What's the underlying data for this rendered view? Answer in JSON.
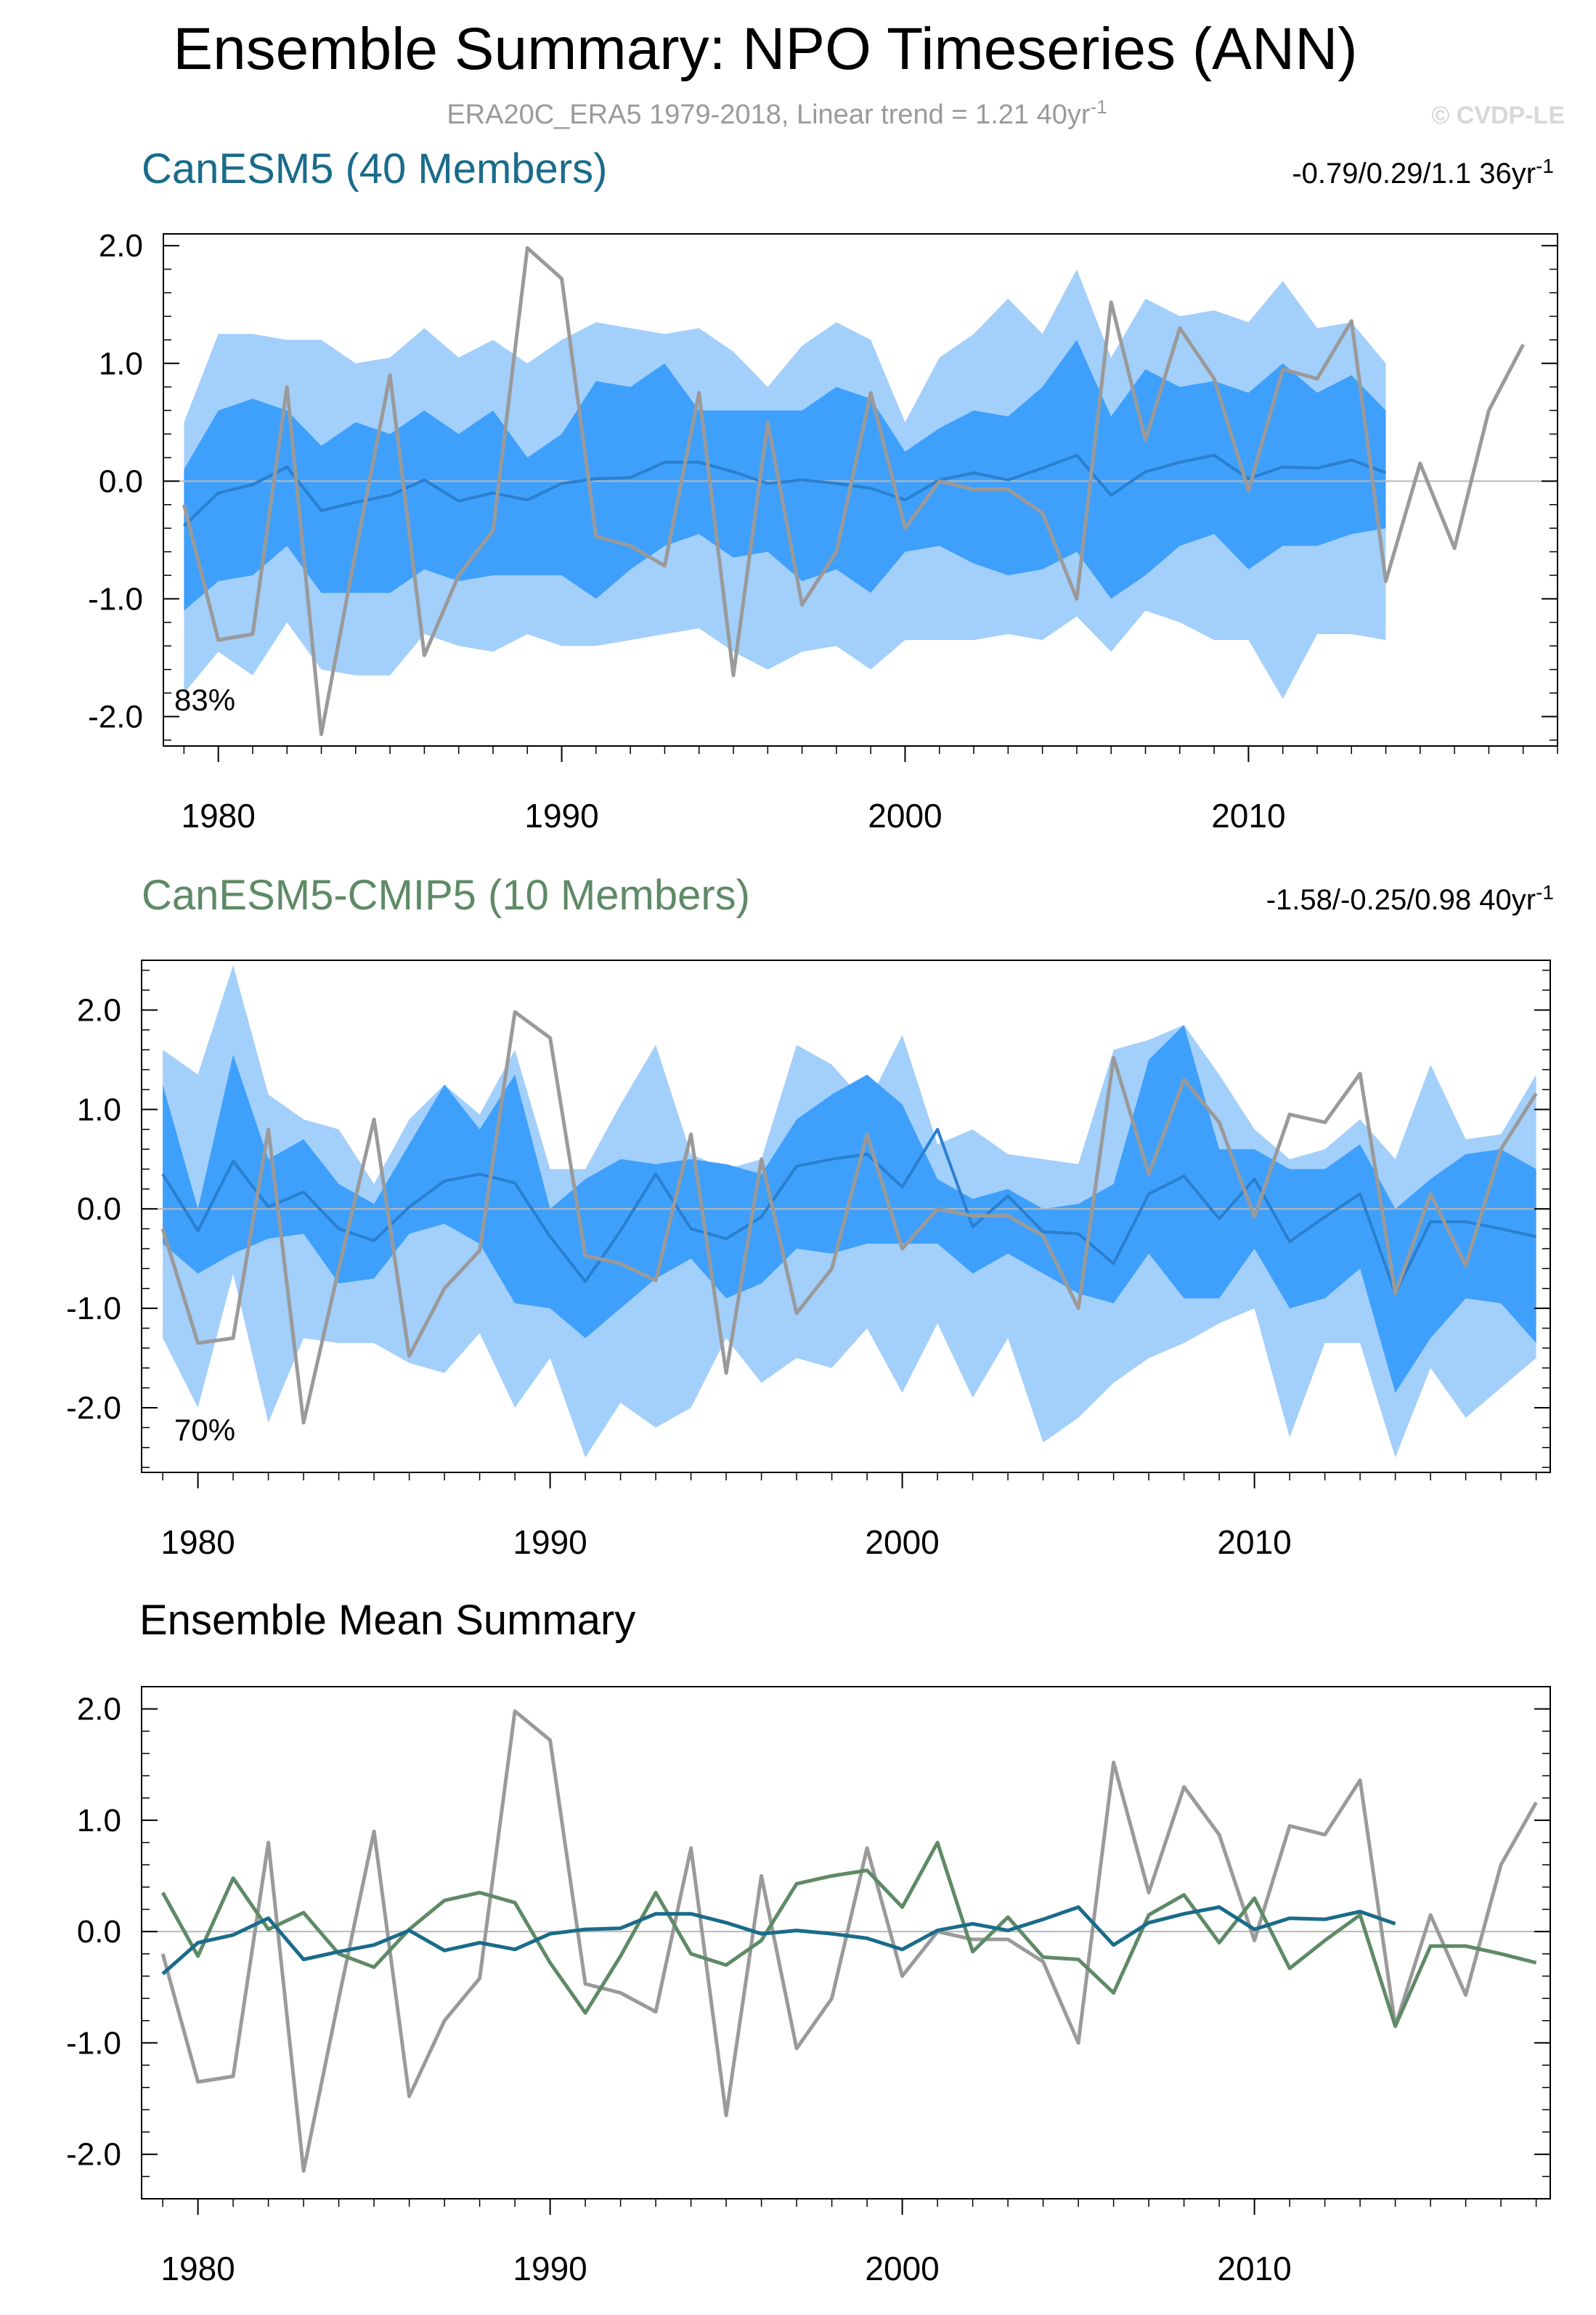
{
  "colors": {
    "obs": "#9a9a9a",
    "canesm5": "#1a6b8a",
    "cmip5": "#5e8a66",
    "spread_outer": "#a3cffb",
    "spread_inner": "#3ea0fb",
    "member_mean": "#2a7fcf",
    "zero_line": "#b8b8b8",
    "axis": "#000000"
  },
  "figure": {
    "title": "Ensemble Summary: NPO Timeseries (ANN)",
    "subtitle": "ERA20C_ERA5 1979-2018, Linear trend = 1.21 40yr",
    "subtitle_sup": "-1",
    "credit": "© CVDP-LE"
  },
  "chart_data": [
    {
      "id": "canesm5",
      "type": "area",
      "title": "CanESM5 (40 Members)",
      "trend_text": "-0.79/0.29/1.1 36yr",
      "trend_sup": "-1",
      "percent_label": "83%",
      "xlim": [
        1978.4,
        2019.0
      ],
      "ylim": [
        -2.25,
        2.1
      ],
      "yticks": [
        -2.0,
        -1.0,
        0.0,
        1.0,
        2.0
      ],
      "ytick_labels": [
        "-2.0",
        "-1.0",
        "0.0",
        "1.0",
        "2.0"
      ],
      "xticks": [
        1980,
        1990,
        2000,
        2010
      ],
      "xtick_labels": [
        "1980",
        "1990",
        "2000",
        "2010"
      ],
      "years": [
        1979,
        1980,
        1981,
        1982,
        1983,
        1984,
        1985,
        1986,
        1987,
        1988,
        1989,
        1990,
        1991,
        1992,
        1993,
        1994,
        1995,
        1996,
        1997,
        1998,
        1999,
        2000,
        2001,
        2002,
        2003,
        2004,
        2005,
        2006,
        2007,
        2008,
        2009,
        2010,
        2011,
        2012,
        2013,
        2014
      ],
      "outer_upper": [
        0.5,
        1.25,
        1.25,
        1.2,
        1.2,
        1.0,
        1.05,
        1.3,
        1.05,
        1.2,
        1.0,
        1.2,
        1.35,
        1.3,
        1.25,
        1.3,
        1.1,
        0.8,
        1.15,
        1.35,
        1.2,
        0.5,
        1.05,
        1.25,
        1.55,
        1.25,
        1.8,
        1.05,
        1.55,
        1.4,
        1.45,
        1.35,
        1.7,
        1.3,
        1.35,
        1.0
      ],
      "inner_upper": [
        0.1,
        0.6,
        0.7,
        0.6,
        0.3,
        0.5,
        0.4,
        0.6,
        0.4,
        0.6,
        0.2,
        0.4,
        0.85,
        0.8,
        1.0,
        0.6,
        0.6,
        0.6,
        0.6,
        0.8,
        0.7,
        0.25,
        0.45,
        0.6,
        0.55,
        0.8,
        1.2,
        0.55,
        0.95,
        0.8,
        0.85,
        0.75,
        1.0,
        0.75,
        0.9,
        0.6
      ],
      "inner_lower": [
        -1.1,
        -0.85,
        -0.8,
        -0.55,
        -0.95,
        -0.95,
        -0.95,
        -0.75,
        -0.85,
        -0.8,
        -0.8,
        -0.8,
        -1.0,
        -0.75,
        -0.55,
        -0.45,
        -0.65,
        -0.6,
        -0.85,
        -0.75,
        -0.95,
        -0.6,
        -0.55,
        -0.7,
        -0.8,
        -0.75,
        -0.6,
        -1.0,
        -0.8,
        -0.55,
        -0.45,
        -0.75,
        -0.55,
        -0.55,
        -0.45,
        -0.4
      ],
      "outer_lower": [
        -1.8,
        -1.45,
        -1.65,
        -1.2,
        -1.6,
        -1.65,
        -1.65,
        -1.3,
        -1.4,
        -1.45,
        -1.3,
        -1.4,
        -1.4,
        -1.35,
        -1.3,
        -1.25,
        -1.45,
        -1.6,
        -1.45,
        -1.4,
        -1.6,
        -1.35,
        -1.35,
        -1.35,
        -1.3,
        -1.35,
        -1.15,
        -1.45,
        -1.1,
        -1.2,
        -1.35,
        -1.35,
        -1.85,
        -1.3,
        -1.3,
        -1.35
      ],
      "ensemble_mean": [
        -0.38,
        -0.1,
        -0.03,
        0.12,
        -0.25,
        -0.18,
        -0.12,
        0.01,
        -0.17,
        -0.1,
        -0.16,
        -0.02,
        0.02,
        0.03,
        0.16,
        0.16,
        0.08,
        -0.02,
        0.01,
        -0.02,
        -0.06,
        -0.16,
        0.01,
        0.07,
        0.01,
        0.11,
        0.22,
        -0.12,
        0.08,
        0.16,
        0.22,
        0.02,
        0.12,
        0.11,
        0.18,
        0.07
      ]
    },
    {
      "id": "cmip5",
      "type": "area",
      "title": "CanESM5-CMIP5 (10 Members)",
      "trend_text": "-1.58/-0.25/0.98 40yr",
      "trend_sup": "-1",
      "percent_label": "70%",
      "xlim": [
        1978.4,
        2018.4
      ],
      "ylim": [
        -2.65,
        2.5
      ],
      "yticks": [
        -2.0,
        -1.0,
        0.0,
        1.0,
        2.0
      ],
      "ytick_labels": [
        "-2.0",
        "-1.0",
        "0.0",
        "1.0",
        "2.0"
      ],
      "xticks": [
        1980,
        1990,
        2000,
        2010
      ],
      "xtick_labels": [
        "1980",
        "1990",
        "2000",
        "2010"
      ],
      "years": [
        1979,
        1980,
        1981,
        1982,
        1983,
        1984,
        1985,
        1986,
        1987,
        1988,
        1989,
        1990,
        1991,
        1992,
        1993,
        1994,
        1995,
        1996,
        1997,
        1998,
        1999,
        2000,
        2001,
        2002,
        2003,
        2004,
        2005,
        2006,
        2007,
        2008,
        2009,
        2010,
        2011,
        2012,
        2013,
        2014,
        2015,
        2016,
        2017,
        2018
      ],
      "outer_upper": [
        1.6,
        1.35,
        2.45,
        1.15,
        0.9,
        0.8,
        0.25,
        0.9,
        1.25,
        0.95,
        1.6,
        0.4,
        0.4,
        1.05,
        1.65,
        0.55,
        0.4,
        0.5,
        1.65,
        1.45,
        1.05,
        1.75,
        0.65,
        0.8,
        0.55,
        0.5,
        0.45,
        1.6,
        1.7,
        1.85,
        1.35,
        0.8,
        0.5,
        0.6,
        0.9,
        0.5,
        1.45,
        0.7,
        0.75,
        1.35
      ],
      "inner_upper": [
        1.25,
        0.0,
        1.55,
        0.5,
        0.7,
        0.25,
        0.05,
        0.65,
        1.25,
        0.8,
        1.35,
        0.0,
        0.3,
        0.5,
        0.45,
        0.5,
        0.45,
        0.35,
        0.9,
        1.15,
        1.35,
        1.05,
        0.3,
        0.1,
        0.2,
        0.0,
        0.05,
        0.25,
        1.5,
        1.85,
        0.6,
        0.6,
        0.4,
        0.4,
        0.65,
        0.0,
        0.3,
        0.55,
        0.6,
        0.4
      ],
      "inner_lower": [
        -0.35,
        -0.65,
        -0.45,
        -0.3,
        -0.25,
        -0.75,
        -0.7,
        -0.25,
        -0.15,
        -0.35,
        -0.95,
        -1.0,
        -1.3,
        -1.0,
        -0.7,
        -0.5,
        -0.9,
        -0.75,
        -0.4,
        -0.45,
        -0.35,
        -0.35,
        -0.35,
        -0.65,
        -0.45,
        -0.65,
        -0.85,
        -0.95,
        -0.45,
        -0.9,
        -0.9,
        -0.4,
        -1.0,
        -0.9,
        -0.6,
        -1.85,
        -1.3,
        -0.9,
        -0.95,
        -1.35
      ],
      "outer_lower": [
        -1.3,
        -2.0,
        -0.65,
        -2.15,
        -1.3,
        -1.35,
        -1.35,
        -1.55,
        -1.65,
        -1.25,
        -2.0,
        -1.5,
        -2.5,
        -1.95,
        -2.2,
        -2.0,
        -1.3,
        -1.75,
        -1.5,
        -1.6,
        -1.2,
        -1.85,
        -1.15,
        -1.9,
        -1.3,
        -2.35,
        -2.1,
        -1.75,
        -1.5,
        -1.35,
        -1.15,
        -1.0,
        -2.3,
        -1.35,
        -1.35,
        -2.5,
        -1.6,
        -2.1,
        -1.8,
        -1.5
      ],
      "ensemble_mean": [
        0.35,
        -0.22,
        0.48,
        0.02,
        0.17,
        -0.2,
        -0.32,
        0.02,
        0.28,
        0.35,
        0.26,
        -0.28,
        -0.73,
        -0.22,
        0.35,
        -0.2,
        -0.3,
        -0.08,
        0.43,
        0.5,
        0.55,
        0.22,
        0.8,
        -0.18,
        0.13,
        -0.23,
        -0.25,
        -0.55,
        0.15,
        0.33,
        -0.1,
        0.3,
        -0.33,
        -0.08,
        0.15,
        -0.85,
        -0.13,
        -0.13,
        -0.2,
        -0.28
      ]
    },
    {
      "id": "summary",
      "type": "line",
      "title": "Ensemble Mean Summary",
      "xlim": [
        1978.4,
        2018.4
      ],
      "ylim": [
        -2.4,
        2.2
      ],
      "yticks": [
        -2.0,
        -1.0,
        0.0,
        1.0,
        2.0
      ],
      "ytick_labels": [
        "-2.0",
        "-1.0",
        "0.0",
        "1.0",
        "2.0"
      ],
      "xticks": [
        1980,
        1990,
        2000,
        2010
      ],
      "xtick_labels": [
        "1980",
        "1990",
        "2000",
        "2010"
      ],
      "series": [
        {
          "name": "CanESM5",
          "key": "canesm5",
          "from": 1979
        },
        {
          "name": "CanESM5-CMIP5",
          "key": "cmip5",
          "from": 1979
        },
        {
          "name": "ERA20C_ERA5",
          "key": "obs",
          "from": 1979
        }
      ]
    }
  ],
  "observations": {
    "name": "ERA20C_ERA5",
    "years_from": 1979,
    "values": [
      -0.2,
      -1.35,
      -1.3,
      0.8,
      -2.15,
      -0.6,
      0.9,
      -1.48,
      -0.8,
      -0.42,
      1.98,
      1.72,
      -0.47,
      -0.55,
      -0.72,
      0.75,
      -1.65,
      0.5,
      -1.05,
      -0.6,
      0.75,
      -0.4,
      0.0,
      -0.07,
      -0.07,
      -0.27,
      -1.0,
      1.52,
      0.35,
      1.3,
      0.87,
      -0.08,
      0.95,
      0.87,
      1.36,
      -0.85,
      0.15,
      -0.57,
      0.6,
      1.16
    ]
  }
}
